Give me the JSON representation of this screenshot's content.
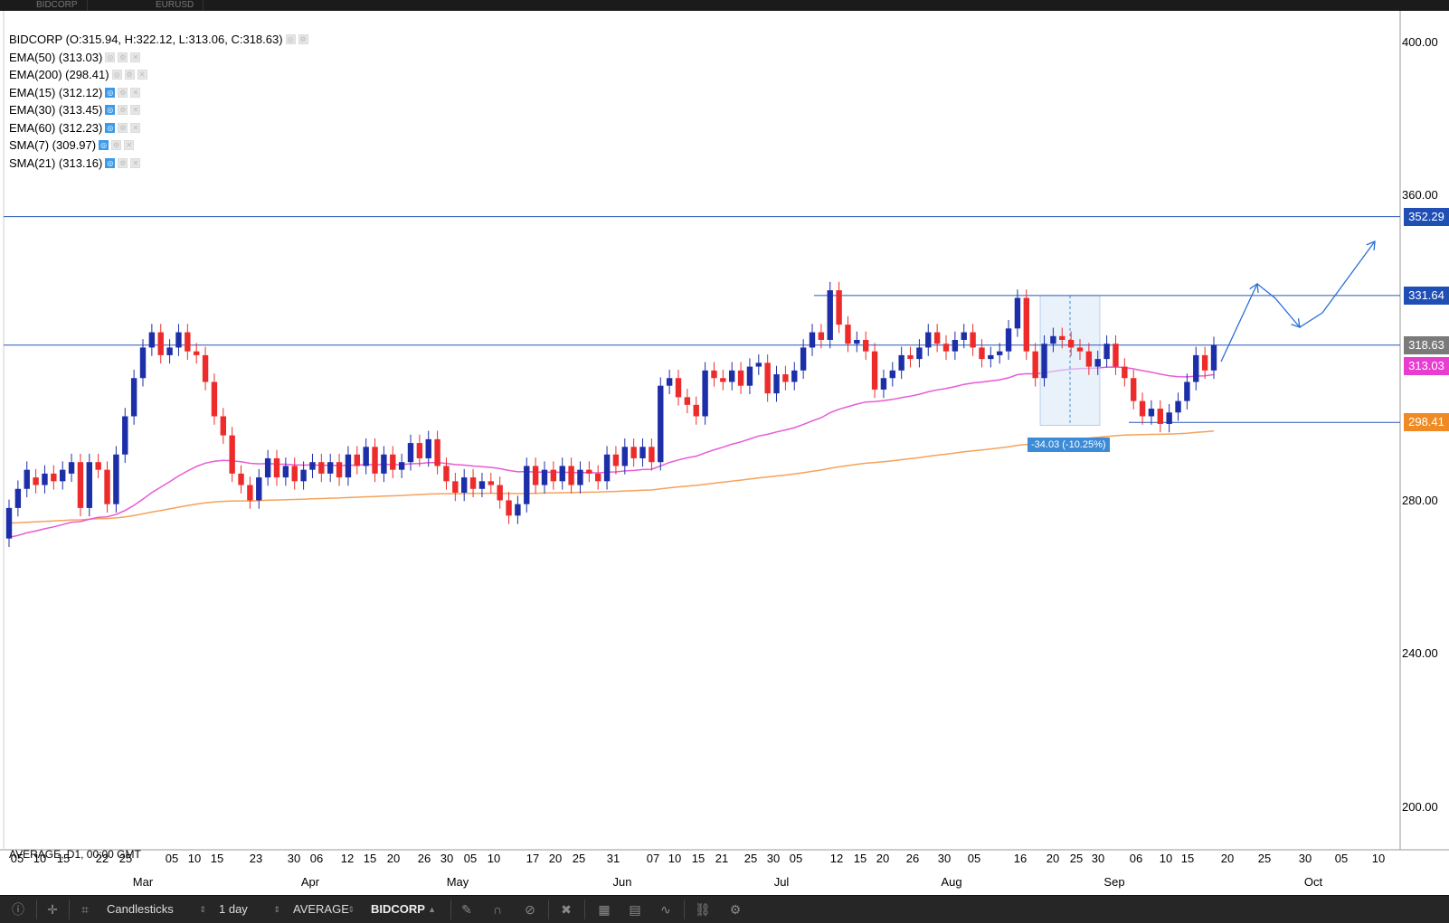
{
  "tabs": [
    "BIDCORP",
    "EURUSD"
  ],
  "legend": {
    "main": "BIDCORP (O:315.94, H:322.12, L:313.06, C:318.63)",
    "indicators": [
      {
        "label": "EMA(50) (313.03)",
        "eye_on": false
      },
      {
        "label": "EMA(200) (298.41)",
        "eye_on": false
      },
      {
        "label": "EMA(15) (312.12)",
        "eye_on": true
      },
      {
        "label": "EMA(30) (313.45)",
        "eye_on": true
      },
      {
        "label": "EMA(60) (312.23)",
        "eye_on": true
      },
      {
        "label": "SMA(7) (309.97)",
        "eye_on": true
      },
      {
        "label": "SMA(21) (313.16)",
        "eye_on": true
      }
    ]
  },
  "bottom_label": "AVERAGE, D1, 00:00 GMT",
  "y_axis": {
    "ticks": [
      "400.00",
      "360.00",
      "280.00",
      "240.00",
      "200.00"
    ]
  },
  "price_tags": [
    {
      "value": "352.29",
      "color": "#1f4fb5"
    },
    {
      "value": "331.64",
      "color": "#1f4fb5"
    },
    {
      "value": "318.63",
      "color": "#7a7a7a"
    },
    {
      "value": "313.03",
      "color": "#e83dd1"
    },
    {
      "value": "298.41",
      "color": "#f08a24"
    }
  ],
  "measure_label": "-34.03 (-10.25%)",
  "x_axis": {
    "days": [
      "05",
      "10",
      "15",
      "22",
      "25",
      "05",
      "10",
      "15",
      "23",
      "30",
      "06",
      "12",
      "15",
      "20",
      "26",
      "30",
      "05",
      "10",
      "17",
      "20",
      "25",
      "31",
      "07",
      "10",
      "15",
      "21",
      "25",
      "30",
      "05",
      "12",
      "15",
      "20",
      "26",
      "30",
      "05",
      "16",
      "20",
      "25",
      "30",
      "06",
      "10",
      "15",
      "20",
      "25",
      "30",
      "05",
      "10"
    ],
    "months": [
      "Mar",
      "Apr",
      "May",
      "Jun",
      "Jul",
      "Aug",
      "Sep",
      "Oct"
    ]
  },
  "toolbar": {
    "chart_type": "Candlesticks",
    "timeframe": "1 day",
    "template": "AVERAGE",
    "symbol": "BIDCORP"
  },
  "chart_data": {
    "type": "candlestick",
    "symbol": "BIDCORP",
    "ylim": [
      200,
      400
    ],
    "horizontal_levels": [
      352.29,
      331.64,
      318.63,
      298.41
    ],
    "candles": [
      [
        268,
        276
      ],
      [
        276,
        281
      ],
      [
        281,
        286
      ],
      [
        284,
        282
      ],
      [
        282,
        285
      ],
      [
        285,
        283
      ],
      [
        283,
        286
      ],
      [
        285,
        288
      ],
      [
        288,
        276
      ],
      [
        276,
        288
      ],
      [
        288,
        286
      ],
      [
        286,
        277
      ],
      [
        277,
        290
      ],
      [
        290,
        300
      ],
      [
        300,
        310
      ],
      [
        310,
        318
      ],
      [
        318,
        322
      ],
      [
        322,
        316
      ],
      [
        316,
        318
      ],
      [
        318,
        322
      ],
      [
        322,
        317
      ],
      [
        317,
        316
      ],
      [
        316,
        309
      ],
      [
        309,
        300
      ],
      [
        300,
        295
      ],
      [
        295,
        285
      ],
      [
        285,
        282
      ],
      [
        282,
        278
      ],
      [
        278,
        284
      ],
      [
        284,
        289
      ],
      [
        289,
        284
      ],
      [
        284,
        287
      ],
      [
        287,
        283
      ],
      [
        283,
        286
      ],
      [
        286,
        288
      ],
      [
        288,
        285
      ],
      [
        285,
        288
      ],
      [
        288,
        284
      ],
      [
        284,
        290
      ],
      [
        290,
        287
      ],
      [
        287,
        292
      ],
      [
        292,
        285
      ],
      [
        285,
        290
      ],
      [
        290,
        286
      ],
      [
        286,
        288
      ],
      [
        288,
        293
      ],
      [
        293,
        289
      ],
      [
        289,
        294
      ],
      [
        294,
        287
      ],
      [
        287,
        283
      ],
      [
        283,
        280
      ],
      [
        280,
        284
      ],
      [
        284,
        281
      ],
      [
        281,
        283
      ],
      [
        283,
        282
      ],
      [
        282,
        278
      ],
      [
        278,
        274
      ],
      [
        274,
        277
      ],
      [
        277,
        287
      ],
      [
        287,
        282
      ],
      [
        282,
        286
      ],
      [
        286,
        283
      ],
      [
        283,
        287
      ],
      [
        287,
        282
      ],
      [
        282,
        286
      ],
      [
        286,
        285
      ],
      [
        285,
        283
      ],
      [
        283,
        290
      ],
      [
        290,
        287
      ],
      [
        287,
        292
      ],
      [
        292,
        289
      ],
      [
        289,
        292
      ],
      [
        292,
        288
      ],
      [
        288,
        308
      ],
      [
        308,
        310
      ],
      [
        310,
        305
      ],
      [
        305,
        303
      ],
      [
        303,
        300
      ],
      [
        300,
        312
      ],
      [
        312,
        310
      ],
      [
        310,
        309
      ],
      [
        309,
        312
      ],
      [
        312,
        308
      ],
      [
        308,
        313
      ],
      [
        313,
        314
      ],
      [
        314,
        306
      ],
      [
        306,
        311
      ],
      [
        311,
        309
      ],
      [
        309,
        312
      ],
      [
        312,
        318
      ],
      [
        318,
        322
      ],
      [
        322,
        320
      ],
      [
        320,
        333
      ],
      [
        333,
        324
      ],
      [
        324,
        319
      ],
      [
        319,
        320
      ],
      [
        320,
        317
      ],
      [
        317,
        307
      ],
      [
        307,
        310
      ],
      [
        310,
        312
      ],
      [
        312,
        316
      ],
      [
        316,
        315
      ],
      [
        315,
        318
      ],
      [
        318,
        322
      ],
      [
        322,
        319
      ],
      [
        319,
        317
      ],
      [
        317,
        320
      ],
      [
        320,
        322
      ],
      [
        322,
        318
      ],
      [
        318,
        315
      ],
      [
        315,
        316
      ],
      [
        316,
        317
      ],
      [
        317,
        323
      ],
      [
        323,
        331
      ],
      [
        331,
        317
      ],
      [
        317,
        310
      ],
      [
        310,
        319
      ],
      [
        319,
        321
      ],
      [
        321,
        320
      ],
      [
        320,
        318
      ],
      [
        318,
        317
      ],
      [
        317,
        313
      ],
      [
        313,
        315
      ],
      [
        315,
        319
      ],
      [
        319,
        313
      ],
      [
        313,
        310
      ],
      [
        310,
        304
      ],
      [
        304,
        300
      ],
      [
        300,
        302
      ],
      [
        302,
        298
      ],
      [
        298,
        301
      ],
      [
        301,
        304
      ],
      [
        304,
        309
      ],
      [
        309,
        316
      ],
      [
        316,
        312
      ],
      [
        312,
        318.63
      ]
    ]
  }
}
